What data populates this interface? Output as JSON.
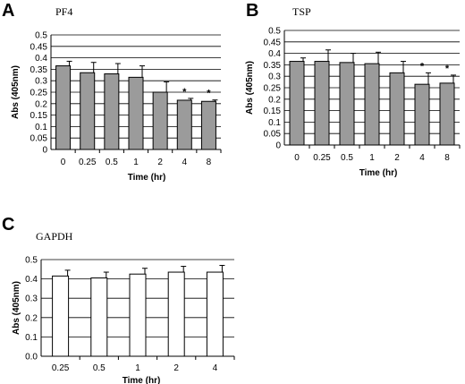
{
  "chart_data": [
    {
      "type": "bar",
      "panel": "A",
      "title": "PF4",
      "xlabel": "Time (hr)",
      "ylabel": "Abs (405nm)",
      "ylim": [
        0,
        0.5
      ],
      "yticks": [
        "0",
        "0.05",
        "0.1",
        "0.15",
        "0.2",
        "0.25",
        "0.3",
        "0.35",
        "0.4",
        "0.45",
        "0.5"
      ],
      "grid": true,
      "categories": [
        "0",
        "0.25",
        "0.5",
        "1",
        "2",
        "4",
        "8"
      ],
      "values": [
        0.365,
        0.335,
        0.33,
        0.315,
        0.25,
        0.215,
        0.21
      ],
      "errors": [
        0.02,
        0.045,
        0.045,
        0.05,
        0.045,
        0.008,
        0.006
      ],
      "significance": [
        "",
        "",
        "",
        "",
        "",
        "*",
        "*"
      ],
      "bar_color": "#9b9b9b"
    },
    {
      "type": "bar",
      "panel": "B",
      "title": "TSP",
      "xlabel": "Time (hr)",
      "ylabel": "Abs (405nm)",
      "ylim": [
        0,
        0.5
      ],
      "yticks": [
        "0",
        "0.05",
        "0.1",
        "0.15",
        "0.2",
        "0.25",
        "0.3",
        "0.35",
        "0.4",
        "0.45",
        "0.5"
      ],
      "grid": true,
      "categories": [
        "0",
        "0.25",
        "0.5",
        "1",
        "2",
        "4",
        "8"
      ],
      "values": [
        0.365,
        0.365,
        0.36,
        0.355,
        0.315,
        0.265,
        0.27
      ],
      "errors": [
        0.015,
        0.05,
        0.04,
        0.05,
        0.05,
        0.05,
        0.035
      ],
      "significance": [
        "",
        "",
        "",
        "",
        "",
        "*",
        "*"
      ],
      "bar_color": "#9b9b9b"
    },
    {
      "type": "bar",
      "panel": "C",
      "title": "GAPDH",
      "xlabel": "Time (hr)",
      "ylabel": "Abs (405nm)",
      "ylim": [
        0,
        0.5
      ],
      "yticks": [
        "0.0",
        "0.1",
        "0.2",
        "0.3",
        "0.4",
        "0.5"
      ],
      "grid": true,
      "categories": [
        "0.25",
        "0.5",
        "1",
        "2",
        "4"
      ],
      "values": [
        0.415,
        0.405,
        0.425,
        0.435,
        0.435
      ],
      "errors": [
        0.03,
        0.03,
        0.03,
        0.03,
        0.035
      ],
      "significance": [
        "",
        "",
        "",
        "",
        ""
      ],
      "bar_color": "#ffffff"
    }
  ]
}
